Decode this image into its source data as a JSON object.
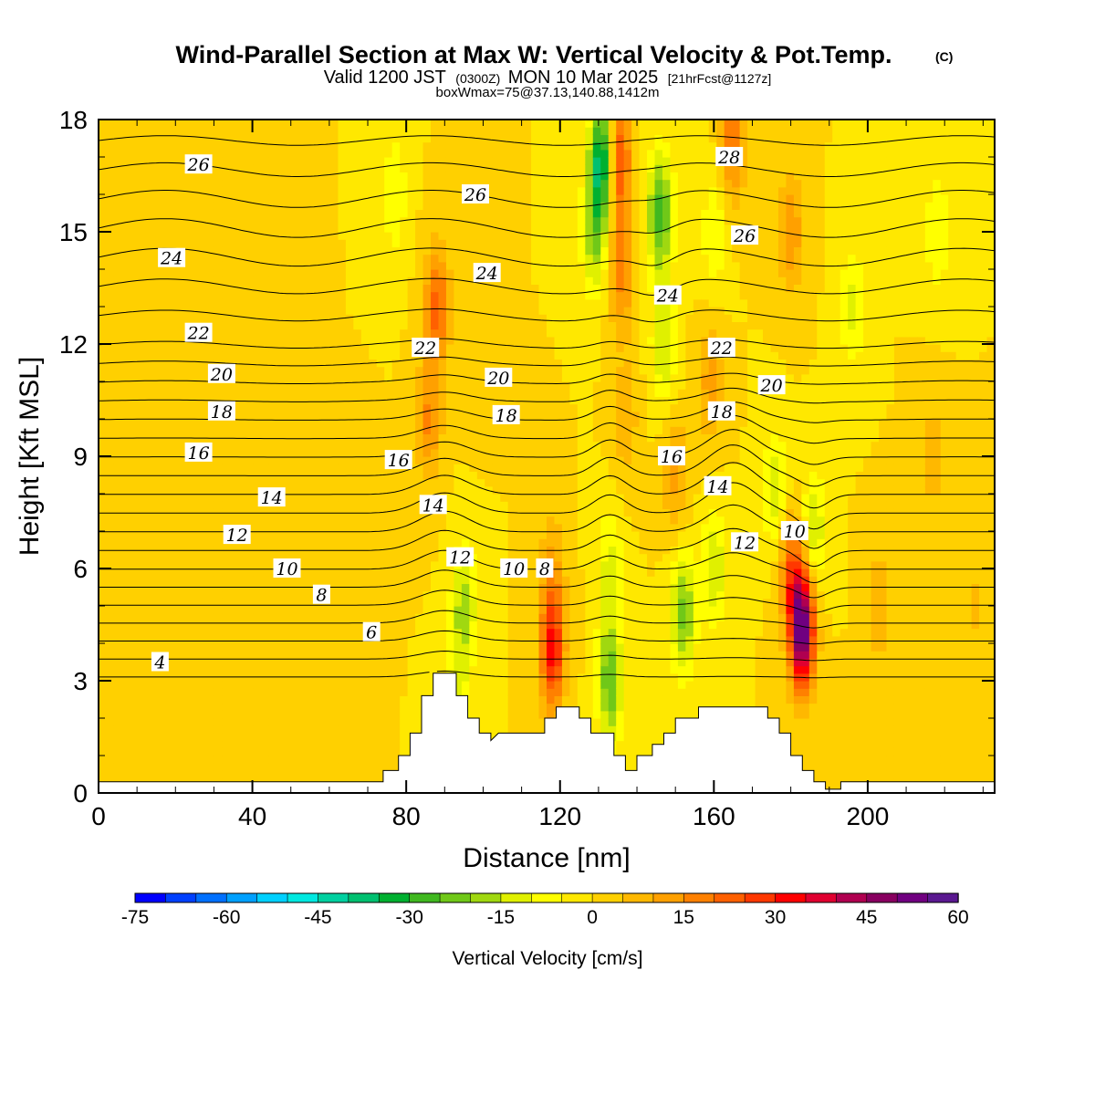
{
  "title": "Wind-Parallel Section at Max W: Vertical Velocity & Pot.Temp.",
  "title_mark": "(C)",
  "valid_prefix": "Valid 1200 JST",
  "valid_utc": "(0300Z)",
  "valid_date": "MON 10 Mar 2025",
  "valid_fcst": "[21hrFcst@1127z]",
  "boxwmax": "boxWmax=75@37.13,140.88,1412m",
  "chart_data": {
    "type": "heatmap",
    "xlabel": "Distance [nm]",
    "ylabel": "Height [Kft MSL]",
    "xlim": [
      0,
      233
    ],
    "ylim": [
      0,
      18
    ],
    "x_ticks": [
      0,
      40,
      80,
      120,
      160,
      200
    ],
    "y_ticks": [
      0,
      3,
      6,
      9,
      12,
      15,
      18
    ],
    "x_tick_labels": [
      "0",
      "40",
      "80",
      "120",
      "160",
      "200"
    ],
    "y_tick_labels": [
      "0",
      "3",
      "6",
      "9",
      "12",
      "15",
      "18"
    ],
    "colorbar": {
      "label": "Vertical Velocity [cm/s]",
      "min": -75,
      "max": 60,
      "step": 5,
      "tick_values": [
        -75,
        -60,
        -45,
        -30,
        -15,
        0,
        15,
        30,
        45,
        60
      ],
      "tick_labels": [
        "-75",
        "-60",
        "-45",
        "-30",
        "-15",
        "0",
        "15",
        "30",
        "45",
        "60"
      ],
      "colors": [
        "#0000ff",
        "#0040ff",
        "#0070ff",
        "#00a0ff",
        "#00d0ff",
        "#00e8e0",
        "#00d0a0",
        "#00c070",
        "#00b030",
        "#40b820",
        "#70c818",
        "#a0d810",
        "#e0f000",
        "#ffff00",
        "#ffe800",
        "#ffd000",
        "#ffb800",
        "#ffa000",
        "#ff8000",
        "#ff6000",
        "#ff3800",
        "#ff0000",
        "#e00030",
        "#b00050",
        "#880060",
        "#700080",
        "#5a1890"
      ]
    },
    "wind_regions": [
      {
        "x": 0,
        "z": 9,
        "w": 4
      },
      {
        "x": 50,
        "z": 14,
        "w": 2
      },
      {
        "x": 70,
        "z": 7,
        "w": 2
      },
      {
        "x": 88,
        "z": 13,
        "w": 22
      },
      {
        "x": 86,
        "z": 10,
        "w": 16
      },
      {
        "x": 95,
        "z": 5,
        "w": -18
      },
      {
        "x": 93,
        "z": 2.5,
        "w": -12
      },
      {
        "x": 77,
        "z": 16,
        "w": -10
      },
      {
        "x": 98,
        "z": 12,
        "w": 5
      },
      {
        "x": 118,
        "z": 3.8,
        "w": 32
      },
      {
        "x": 118,
        "z": 6,
        "w": 10
      },
      {
        "x": 131,
        "z": 17,
        "w": -40
      },
      {
        "x": 129,
        "z": 15,
        "w": -20
      },
      {
        "x": 135,
        "z": 17,
        "w": 30
      },
      {
        "x": 136,
        "z": 14,
        "w": 18
      },
      {
        "x": 137,
        "z": 10,
        "w": 10
      },
      {
        "x": 133,
        "z": 3,
        "w": -25
      },
      {
        "x": 133,
        "z": 6,
        "w": -12
      },
      {
        "x": 146,
        "z": 15.5,
        "w": -28
      },
      {
        "x": 147,
        "z": 12,
        "w": -15
      },
      {
        "x": 150,
        "z": 8.5,
        "w": 12
      },
      {
        "x": 152,
        "z": 4.8,
        "w": -22
      },
      {
        "x": 160,
        "z": 6,
        "w": -15
      },
      {
        "x": 159,
        "z": 11,
        "w": 12
      },
      {
        "x": 160,
        "z": 15,
        "w": -10
      },
      {
        "x": 165,
        "z": 17.5,
        "w": 20
      },
      {
        "x": 176,
        "z": 8,
        "w": -14
      },
      {
        "x": 180,
        "z": 15,
        "w": 15
      },
      {
        "x": 183,
        "z": 4.4,
        "w": 56
      },
      {
        "x": 180,
        "z": 6,
        "w": 20
      },
      {
        "x": 186,
        "z": 7,
        "w": -15
      },
      {
        "x": 196,
        "z": 13,
        "w": -12
      },
      {
        "x": 203,
        "z": 5,
        "w": 10
      },
      {
        "x": 217,
        "z": 9,
        "w": 8
      },
      {
        "x": 218,
        "z": 15,
        "w": -10
      },
      {
        "x": 228,
        "z": 5,
        "w": 6
      }
    ],
    "terrain": [
      [
        0,
        0.3
      ],
      [
        74,
        0.3
      ],
      [
        74,
        0.6
      ],
      [
        78,
        0.6
      ],
      [
        78,
        1.0
      ],
      [
        81,
        1.0
      ],
      [
        81,
        1.6
      ],
      [
        84,
        1.6
      ],
      [
        84,
        2.6
      ],
      [
        87,
        2.6
      ],
      [
        87,
        3.2
      ],
      [
        93,
        3.2
      ],
      [
        93,
        2.6
      ],
      [
        96,
        2.6
      ],
      [
        96,
        2.0
      ],
      [
        99,
        2.0
      ],
      [
        99,
        1.6
      ],
      [
        102,
        1.6
      ],
      [
        102,
        1.4
      ],
      [
        104,
        1.6
      ],
      [
        116,
        1.6
      ],
      [
        116,
        2.0
      ],
      [
        119,
        2.0
      ],
      [
        119,
        2.3
      ],
      [
        125,
        2.3
      ],
      [
        125,
        2.0
      ],
      [
        128,
        2.0
      ],
      [
        128,
        1.6
      ],
      [
        131,
        1.6
      ],
      [
        134,
        1.6
      ],
      [
        134,
        1.0
      ],
      [
        137,
        1.0
      ],
      [
        137,
        0.6
      ],
      [
        140,
        0.6
      ],
      [
        140,
        1.0
      ],
      [
        144,
        1.0
      ],
      [
        144,
        1.3
      ],
      [
        147,
        1.3
      ],
      [
        147,
        1.6
      ],
      [
        150,
        1.6
      ],
      [
        150,
        2.0
      ],
      [
        156,
        2.0
      ],
      [
        156,
        2.3
      ],
      [
        174,
        2.3
      ],
      [
        174,
        2.0
      ],
      [
        177,
        2.0
      ],
      [
        177,
        1.6
      ],
      [
        180,
        1.6
      ],
      [
        180,
        1.0
      ],
      [
        183,
        1.0
      ],
      [
        183,
        0.6
      ],
      [
        186,
        0.6
      ],
      [
        186,
        0.3
      ],
      [
        189,
        0.3
      ],
      [
        189,
        0.1
      ],
      [
        193,
        0.1
      ],
      [
        193,
        0.3
      ],
      [
        233,
        0.3
      ]
    ],
    "theta_levels": [
      4,
      5,
      6,
      7,
      8,
      9,
      10,
      11,
      12,
      13,
      14,
      15,
      16,
      17,
      18,
      19,
      20,
      21,
      22,
      23,
      24,
      25,
      26,
      27,
      28,
      29,
      30
    ],
    "theta_labels": [
      {
        "text": "26",
        "x": 26,
        "z": 16.8
      },
      {
        "text": "26",
        "x": 98,
        "z": 16.0
      },
      {
        "text": "28",
        "x": 164,
        "z": 17.0
      },
      {
        "text": "24",
        "x": 19,
        "z": 14.3
      },
      {
        "text": "24",
        "x": 101,
        "z": 13.9
      },
      {
        "text": "24",
        "x": 148,
        "z": 13.3
      },
      {
        "text": "26",
        "x": 168,
        "z": 14.9
      },
      {
        "text": "22",
        "x": 26,
        "z": 12.3
      },
      {
        "text": "22",
        "x": 85,
        "z": 11.9
      },
      {
        "text": "22",
        "x": 162,
        "z": 11.9
      },
      {
        "text": "20",
        "x": 32,
        "z": 11.2
      },
      {
        "text": "20",
        "x": 104,
        "z": 11.1
      },
      {
        "text": "20",
        "x": 175,
        "z": 10.9
      },
      {
        "text": "18",
        "x": 32,
        "z": 10.2
      },
      {
        "text": "18",
        "x": 106,
        "z": 10.1
      },
      {
        "text": "18",
        "x": 162,
        "z": 10.2
      },
      {
        "text": "16",
        "x": 26,
        "z": 9.1
      },
      {
        "text": "16",
        "x": 78,
        "z": 8.9
      },
      {
        "text": "16",
        "x": 149,
        "z": 9.0
      },
      {
        "text": "14",
        "x": 45,
        "z": 7.9
      },
      {
        "text": "14",
        "x": 87,
        "z": 7.7
      },
      {
        "text": "14",
        "x": 161,
        "z": 8.2
      },
      {
        "text": "12",
        "x": 36,
        "z": 6.9
      },
      {
        "text": "12",
        "x": 94,
        "z": 6.3
      },
      {
        "text": "12",
        "x": 168,
        "z": 6.7
      },
      {
        "text": "10",
        "x": 49,
        "z": 6.0
      },
      {
        "text": "10",
        "x": 108,
        "z": 6.0
      },
      {
        "text": "10",
        "x": 181,
        "z": 7.0
      },
      {
        "text": "8",
        "x": 116,
        "z": 6.0
      },
      {
        "text": "8",
        "x": 58,
        "z": 5.3
      },
      {
        "text": "6",
        "x": 71,
        "z": 4.3
      },
      {
        "text": "4",
        "x": 16,
        "z": 3.5
      }
    ]
  }
}
